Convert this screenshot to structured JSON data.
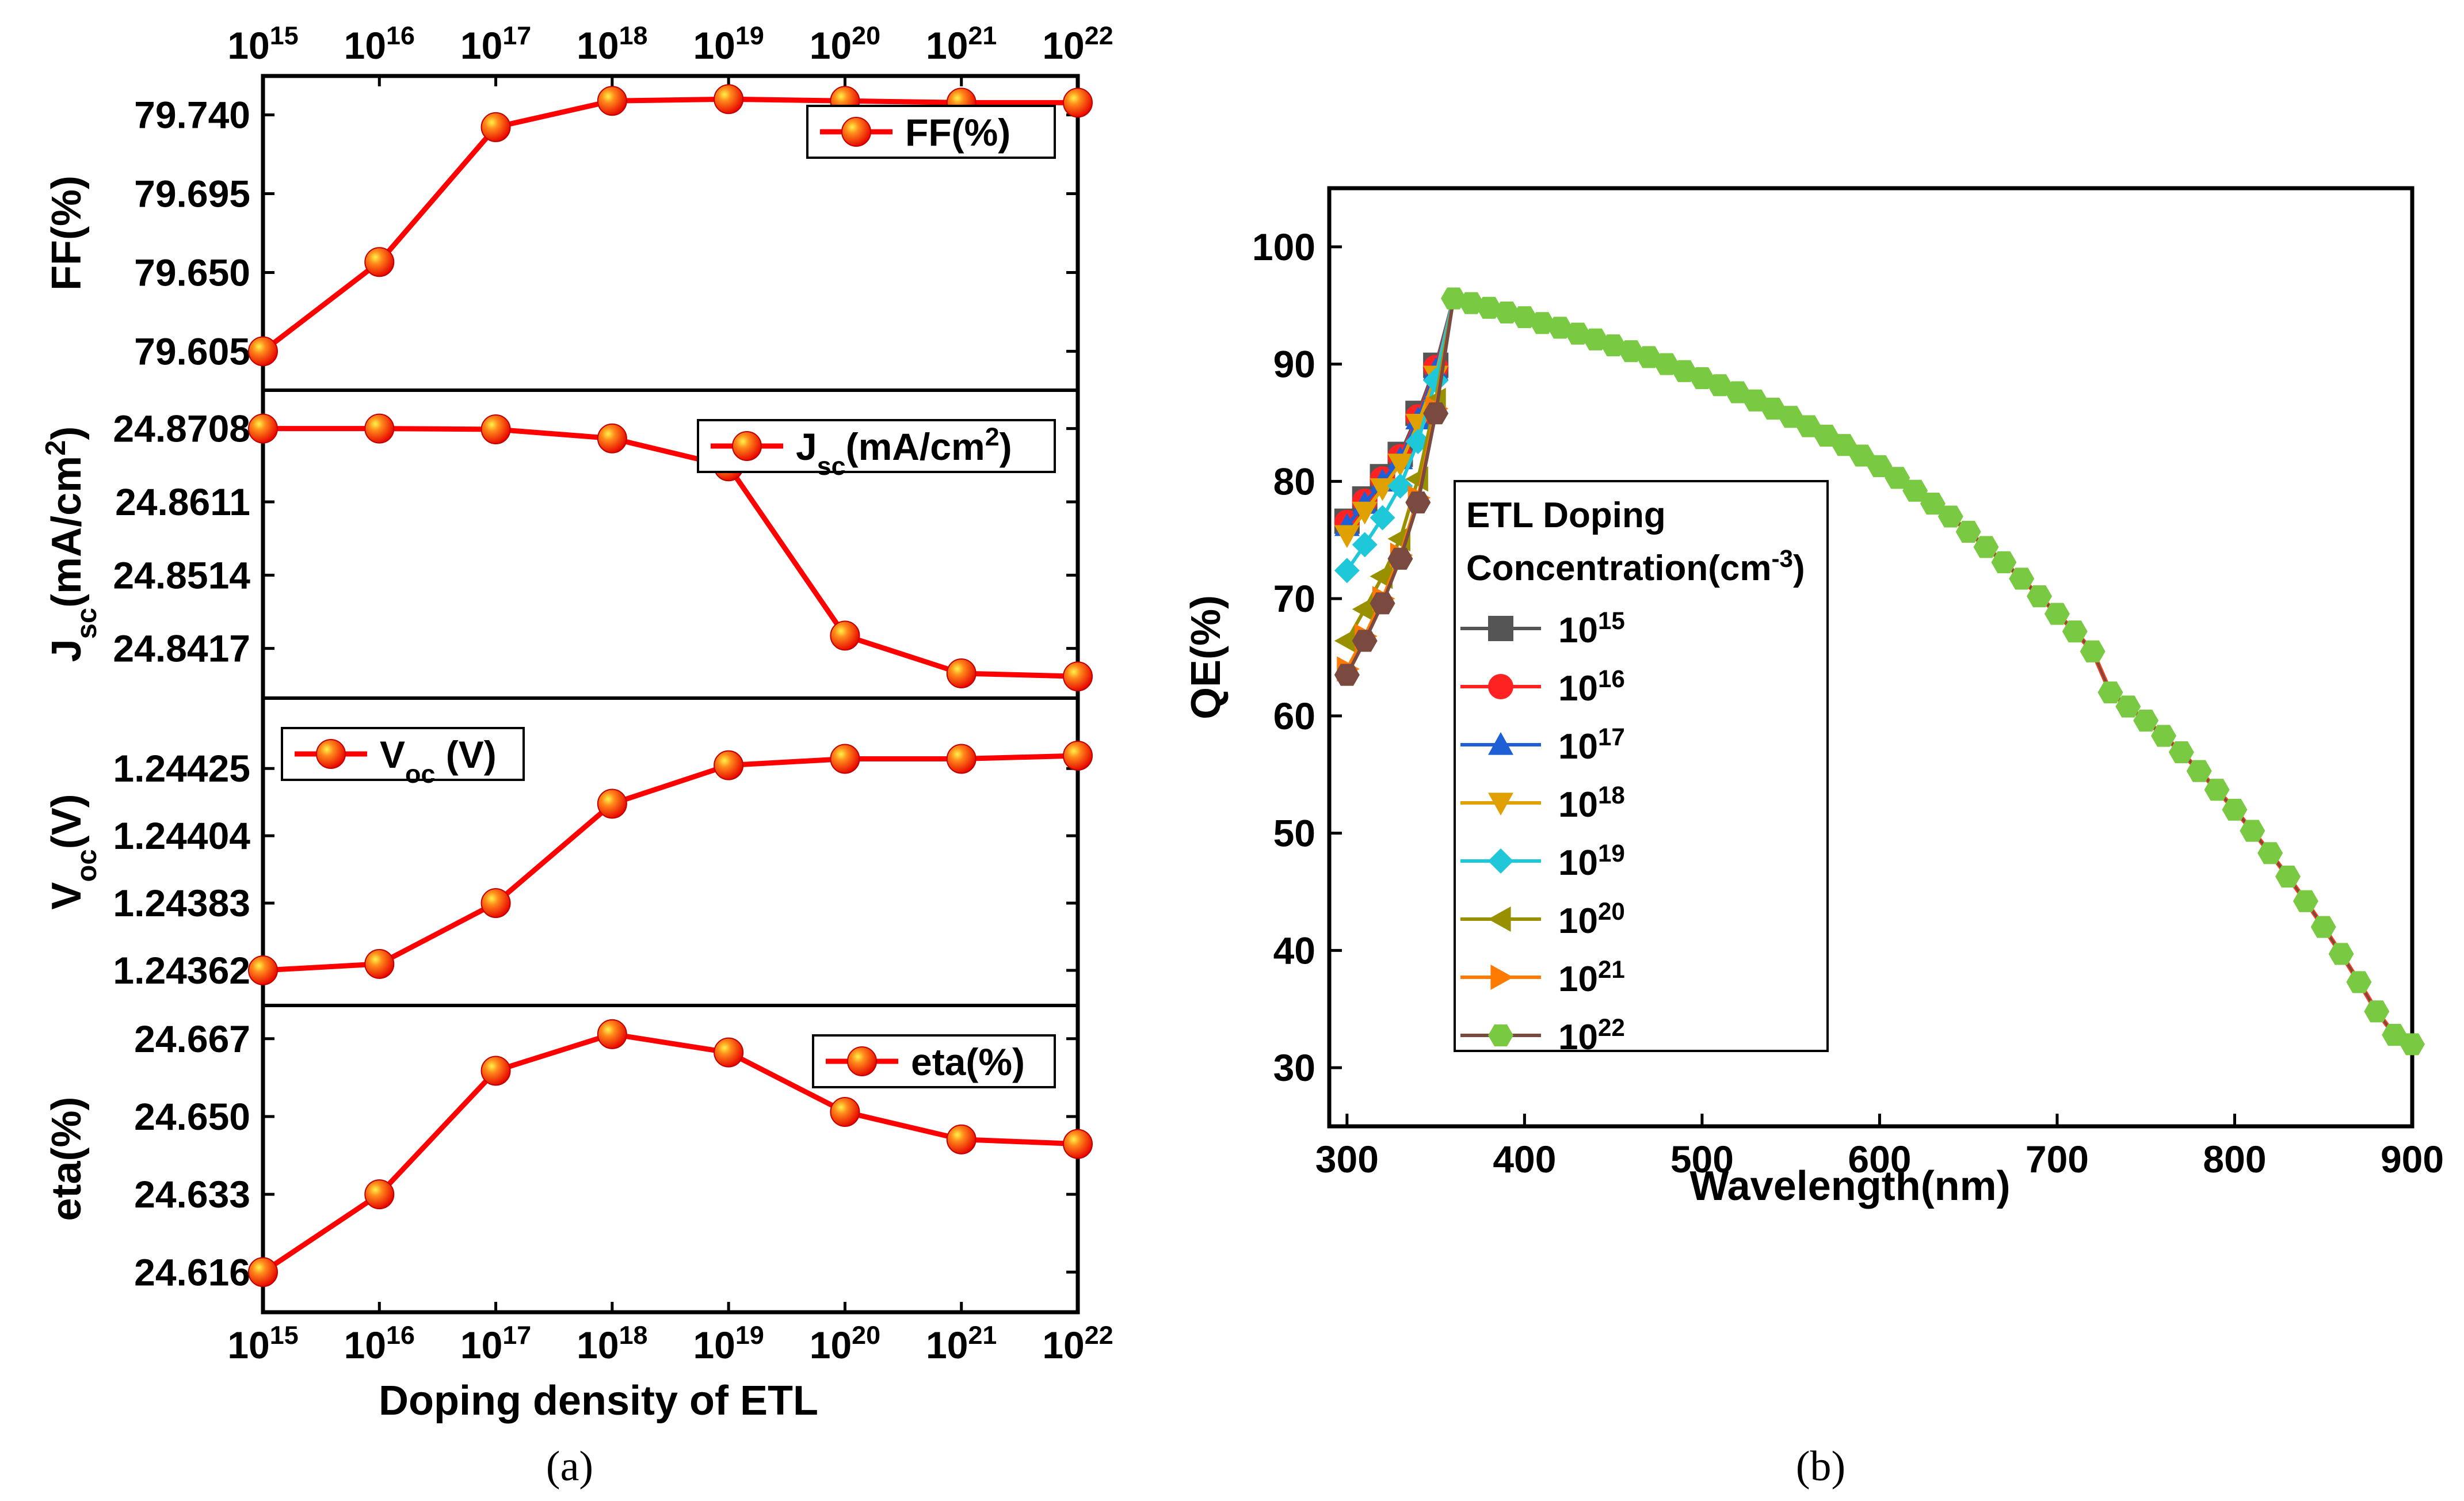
{
  "panel_labels": {
    "a": "(a)",
    "b": "(b)"
  },
  "chart_data": [
    {
      "id": "a",
      "type": "line",
      "title": "",
      "xlabel": "Doping density of ETL",
      "x_scale": "log",
      "x": [
        1000000000000000.0,
        1e+16,
        1e+17,
        1e+18,
        1e+19,
        1e+20,
        1e+21,
        1e+22
      ],
      "xtick_base": "10",
      "xtick_exponents": [
        "15",
        "16",
        "17",
        "18",
        "19",
        "20",
        "21",
        "22"
      ],
      "line_color": "#ff0000",
      "marker_color": "#ff1a00",
      "subplots": [
        {
          "name": "FF",
          "ylabel": "FF(%)",
          "legend": "FF(%)",
          "legend_position": "top-right",
          "ylim": [
            79.59,
            79.755
          ],
          "yticks": [
            "79.605",
            "79.650",
            "79.695",
            "79.740"
          ],
          "values": [
            79.605,
            79.656,
            79.733,
            79.748,
            79.749,
            79.748,
            79.747,
            79.747
          ]
        },
        {
          "name": "Jsc",
          "ylabel": "Jsc(mA/cm2)",
          "ylabel_main": "J",
          "ylabel_sub": "sc",
          "ylabel_rest": "(mA/cm",
          "ylabel_sup": "2",
          "ylabel_end": ")",
          "legend": "Jsc(mA/cm2)",
          "legend_position": "top-right",
          "ylim": [
            24.8368,
            24.8742
          ],
          "yticks": [
            "24.8417",
            "24.8514",
            "24.8611",
            "24.8708"
          ],
          "values": [
            24.8708,
            24.8708,
            24.8707,
            24.8695,
            24.8658,
            24.8434,
            24.8384,
            24.838
          ]
        },
        {
          "name": "Voc",
          "ylabel": "Voc(V)",
          "ylabel_main": "V",
          "ylabel_sub": "oc",
          "ylabel_rest": "(V)",
          "legend": "Voc (V)",
          "legend_main": "V",
          "legend_sub": "oc",
          "legend_rest": " (V)",
          "legend_position": "top-left",
          "ylim": [
            1.24355,
            1.24443
          ],
          "yticks": [
            "1.24362",
            "1.24383",
            "1.24404",
            "1.24425"
          ],
          "values": [
            1.24362,
            1.24364,
            1.24383,
            1.24414,
            1.24426,
            1.24428,
            1.24428,
            1.24429
          ]
        },
        {
          "name": "eta",
          "ylabel": "eta(%)",
          "legend": "eta(%)",
          "legend_position": "top-right",
          "ylim": [
            24.61,
            24.6715
          ],
          "yticks": [
            "24.616",
            "24.633",
            "24.650",
            "24.667"
          ],
          "values": [
            24.616,
            24.633,
            24.66,
            24.668,
            24.664,
            24.651,
            24.645,
            24.644
          ]
        }
      ]
    },
    {
      "id": "b",
      "type": "line",
      "title": "",
      "xlabel": "Wavelength(nm)",
      "ylabel": "QE(%)",
      "xlim": [
        290,
        900
      ],
      "ylim": [
        25,
        105
      ],
      "xticks": [
        300,
        400,
        500,
        600,
        700,
        800,
        900
      ],
      "yticks": [
        30,
        40,
        50,
        60,
        70,
        80,
        90,
        100
      ],
      "legend_title_line1": "ETL Doping",
      "legend_title_line2": "Concentration(cm",
      "legend_title_sup": "-3",
      "legend_title_end": ")",
      "legend_position": "center-left",
      "x_common": [
        360,
        370,
        380,
        390,
        400,
        410,
        420,
        430,
        440,
        450,
        460,
        470,
        480,
        490,
        500,
        510,
        520,
        530,
        540,
        550,
        560,
        570,
        580,
        590,
        600,
        610,
        620,
        630,
        640,
        650,
        660,
        670,
        680,
        690,
        700,
        710,
        720,
        730,
        740,
        750,
        760,
        770,
        780,
        790,
        800,
        810,
        820,
        830,
        840,
        850,
        860,
        870,
        880,
        890,
        900
      ],
      "values_common": [
        95.6,
        95.2,
        94.8,
        94.4,
        94.0,
        93.5,
        93.1,
        92.6,
        92.1,
        91.6,
        91.1,
        90.6,
        90.0,
        89.4,
        88.8,
        88.2,
        87.6,
        86.9,
        86.2,
        85.5,
        84.7,
        83.9,
        83.1,
        82.2,
        81.3,
        80.3,
        79.2,
        78.1,
        77.0,
        75.7,
        74.4,
        73.1,
        71.7,
        70.2,
        68.7,
        67.2,
        65.5,
        62.0,
        60.8,
        59.6,
        58.3,
        56.9,
        55.3,
        53.7,
        52.0,
        50.2,
        48.3,
        46.3,
        44.2,
        42.0,
        39.7,
        37.3,
        34.8,
        32.8,
        32.0
      ],
      "x_short": [
        300,
        310,
        320,
        330,
        340,
        350
      ],
      "series": [
        {
          "name": "10^15",
          "base": "10",
          "exp": "15",
          "color": "#555555",
          "marker": "square",
          "values": [
            76.6,
            78.5,
            80.4,
            82.3,
            85.8,
            89.9
          ]
        },
        {
          "name": "10^16",
          "base": "10",
          "exp": "16",
          "color": "#ff2222",
          "marker": "circle",
          "values": [
            76.5,
            78.3,
            80.2,
            82.1,
            85.5,
            89.7
          ]
        },
        {
          "name": "10^17",
          "base": "10",
          "exp": "17",
          "color": "#1f5fd6",
          "marker": "triangle",
          "values": [
            76.2,
            78.1,
            80.0,
            81.9,
            85.3,
            89.5
          ]
        },
        {
          "name": "10^18",
          "base": "10",
          "exp": "18",
          "color": "#e0a000",
          "marker": "tri-down",
          "values": [
            75.4,
            77.4,
            79.4,
            81.5,
            84.9,
            89.0
          ]
        },
        {
          "name": "10^19",
          "base": "10",
          "exp": "19",
          "color": "#1ec8d8",
          "marker": "diamond",
          "values": [
            72.4,
            74.6,
            76.9,
            79.6,
            83.4,
            88.6
          ]
        },
        {
          "name": "10^20",
          "base": "10",
          "exp": "20",
          "color": "#999000",
          "marker": "tri-left",
          "values": [
            66.4,
            69.1,
            71.9,
            75.1,
            80.2,
            86.9
          ]
        },
        {
          "name": "10^21",
          "base": "10",
          "exp": "21",
          "color": "#ff7a00",
          "marker": "tri-right",
          "values": [
            64.0,
            66.8,
            70.0,
            73.7,
            78.6,
            86.2
          ]
        },
        {
          "name": "10^22",
          "base": "10",
          "exp": "22",
          "color": "#7a4a40",
          "marker": "hexagon",
          "values": [
            63.5,
            66.4,
            69.6,
            73.4,
            78.2,
            85.8
          ]
        }
      ],
      "common_marker_color": "#7ac943"
    }
  ]
}
